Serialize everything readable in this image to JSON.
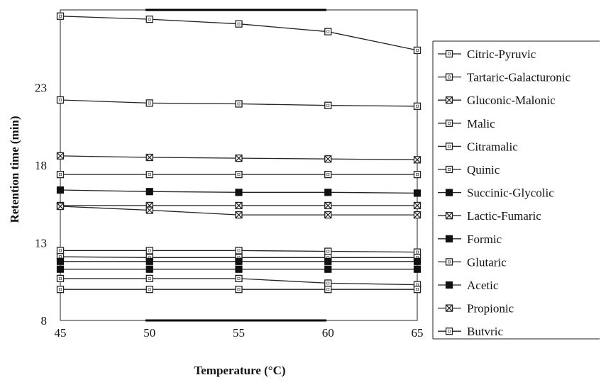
{
  "chart_data": {
    "type": "line",
    "title": "",
    "xlabel": "Temperature (°C)",
    "ylabel": "Retention time (min)",
    "x": [
      45,
      50,
      55,
      60,
      65
    ],
    "xticks": [
      "45",
      "50",
      "55",
      "60",
      "65"
    ],
    "yticks": [
      "8",
      "13",
      "18",
      "23"
    ],
    "xlim": [
      45,
      65
    ],
    "ylim": [
      8,
      28
    ],
    "grid": false,
    "legend_position": "right",
    "series": [
      {
        "name": "Citric-Pyruvic",
        "values": [
          27.6,
          27.4,
          27.1,
          26.6,
          25.4
        ],
        "marker": "open-square"
      },
      {
        "name": "Tartaric-Galacturonic",
        "values": [
          22.2,
          22.0,
          21.95,
          21.85,
          21.8
        ],
        "marker": "open-square"
      },
      {
        "name": "Gluconic-Malonic",
        "values": [
          18.6,
          18.5,
          18.45,
          18.4,
          18.35
        ],
        "marker": "crossed-square"
      },
      {
        "name": "Malic",
        "values": [
          17.4,
          17.4,
          17.4,
          17.4,
          17.4
        ],
        "marker": "open-square"
      },
      {
        "name": "Citramalic",
        "values": [
          12.5,
          12.5,
          12.5,
          12.45,
          12.4
        ],
        "marker": "open-square"
      },
      {
        "name": "Quinic",
        "values": [
          12.1,
          12.05,
          12.05,
          12.05,
          12.05
        ],
        "marker": "open-square"
      },
      {
        "name": "Succinic-Glycolic",
        "values": [
          11.8,
          11.8,
          11.8,
          11.8,
          11.8
        ],
        "marker": "filled-square"
      },
      {
        "name": "Lactic-Fumaric",
        "values": [
          15.4,
          15.4,
          15.4,
          15.4,
          15.4
        ],
        "marker": "crossed-square"
      },
      {
        "name": "Formic",
        "values": [
          16.4,
          16.3,
          16.25,
          16.25,
          16.2
        ],
        "marker": "filled-square"
      },
      {
        "name": "Glutaric",
        "values": [
          10.7,
          10.7,
          10.7,
          10.4,
          10.3
        ],
        "marker": "open-square"
      },
      {
        "name": "Acetic",
        "values": [
          11.3,
          11.3,
          11.3,
          11.3,
          11.3
        ],
        "marker": "filled-square"
      },
      {
        "name": "Propionic",
        "values": [
          15.35,
          15.1,
          14.8,
          14.8,
          14.8
        ],
        "marker": "crossed-square"
      },
      {
        "name": "Butvric",
        "values": [
          10.0,
          10.0,
          10.0,
          10.0,
          10.0
        ],
        "marker": "open-square"
      }
    ]
  }
}
